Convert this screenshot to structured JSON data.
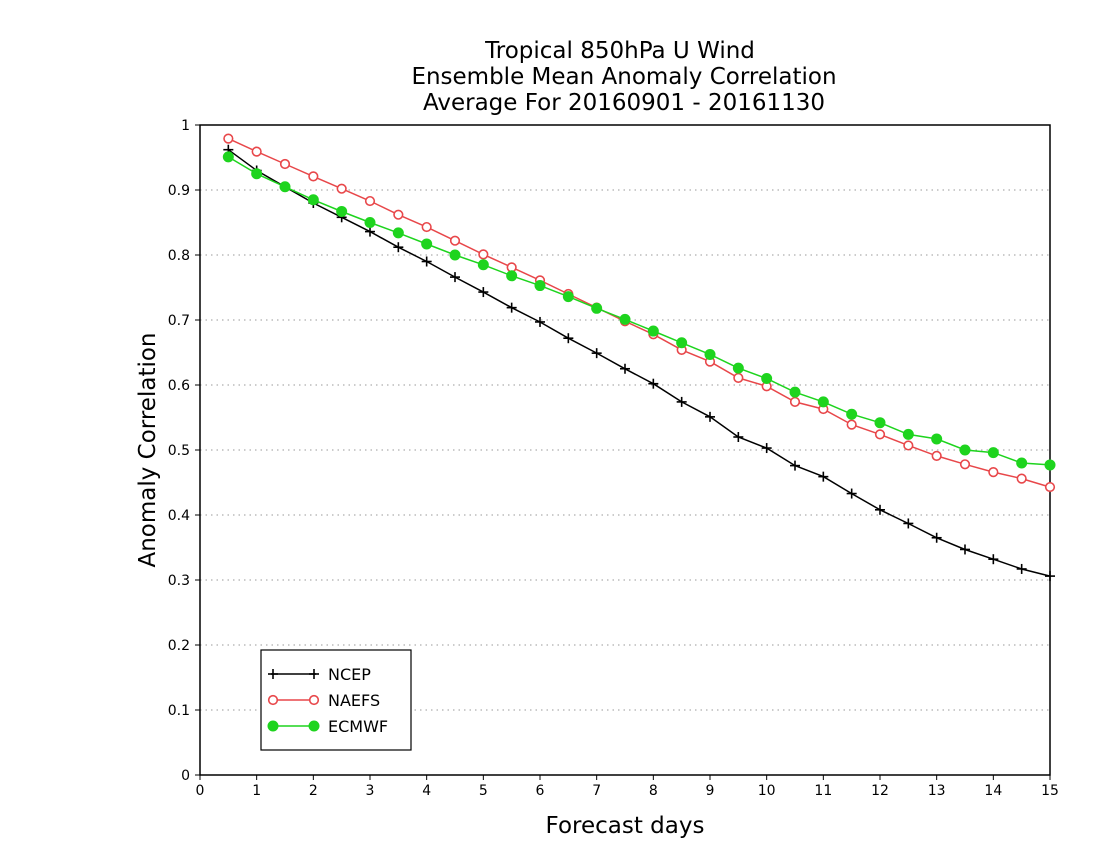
{
  "chart_data": {
    "type": "line",
    "title_lines": [
      "Tropical 850hPa U Wind",
      "Ensemble Mean Anomaly Correlation",
      "Average For 20160901 - 20161130"
    ],
    "xlabel": "Forecast days",
    "ylabel": "Anomaly Correlation",
    "xlim": [
      0,
      15
    ],
    "ylim": [
      0,
      1
    ],
    "xticks": [
      "0",
      "1",
      "2",
      "3",
      "4",
      "5",
      "6",
      "7",
      "8",
      "9",
      "10",
      "11",
      "12",
      "13",
      "14",
      "15"
    ],
    "yticks": [
      "0",
      "0.1",
      "0.2",
      "0.3",
      "0.4",
      "0.5",
      "0.6",
      "0.7",
      "0.8",
      "0.9",
      "1"
    ],
    "grid": "horizontal-dotted",
    "legend_position": "bottom-left",
    "x": [
      0.5,
      1,
      1.5,
      2,
      2.5,
      3,
      3.5,
      4,
      4.5,
      5,
      5.5,
      6,
      6.5,
      7,
      7.5,
      8,
      8.5,
      9,
      9.5,
      10,
      10.5,
      11,
      11.5,
      12,
      12.5,
      13,
      13.5,
      14,
      14.5,
      15
    ],
    "series": [
      {
        "name": "NCEP",
        "color": "#000000",
        "marker": "plus",
        "values": [
          0.962,
          0.93,
          0.905,
          0.88,
          0.858,
          0.836,
          0.812,
          0.79,
          0.766,
          0.743,
          0.719,
          0.697,
          0.672,
          0.649,
          0.625,
          0.602,
          0.574,
          0.551,
          0.52,
          0.503,
          0.476,
          0.459,
          0.433,
          0.408,
          0.387,
          0.365,
          0.347,
          0.332,
          0.317,
          0.306
        ]
      },
      {
        "name": "NAEFS",
        "color": "#e8474a",
        "marker": "open-circle",
        "values": [
          0.979,
          0.959,
          0.94,
          0.921,
          0.902,
          0.883,
          0.862,
          0.843,
          0.822,
          0.801,
          0.781,
          0.761,
          0.74,
          0.719,
          0.698,
          0.678,
          0.654,
          0.636,
          0.611,
          0.598,
          0.574,
          0.563,
          0.539,
          0.524,
          0.507,
          0.491,
          0.478,
          0.466,
          0.456,
          0.443
        ]
      },
      {
        "name": "ECMWF",
        "color": "#1ed41e",
        "marker": "filled-circle",
        "values": [
          0.951,
          0.925,
          0.905,
          0.885,
          0.867,
          0.85,
          0.834,
          0.817,
          0.8,
          0.785,
          0.768,
          0.753,
          0.736,
          0.718,
          0.701,
          0.683,
          0.665,
          0.647,
          0.626,
          0.61,
          0.589,
          0.574,
          0.555,
          0.542,
          0.524,
          0.517,
          0.5,
          0.496,
          0.48,
          0.477
        ]
      }
    ]
  }
}
